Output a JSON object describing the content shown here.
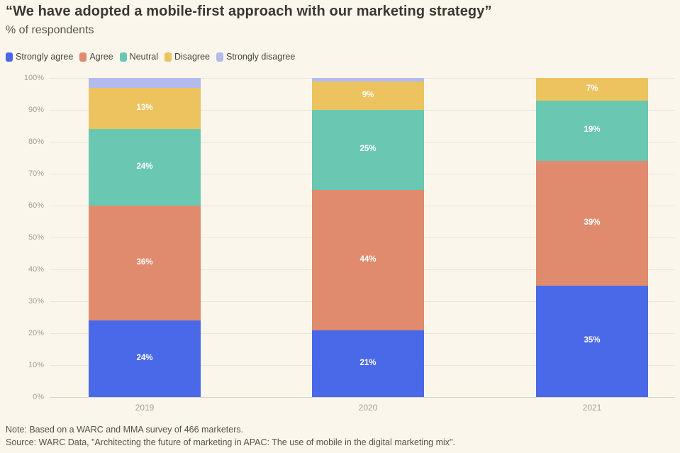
{
  "header": {
    "title": "“We have adopted a mobile-first approach with our marketing strategy”",
    "subtitle": "% of respondents"
  },
  "chart_data": {
    "type": "bar",
    "stacked": true,
    "categories": [
      "2019",
      "2020",
      "2021"
    ],
    "series": [
      {
        "name": "Strongly agree",
        "color": "#4a69e8",
        "values": [
          24,
          21,
          35
        ]
      },
      {
        "name": "Agree",
        "color": "#e08b6e",
        "values": [
          36,
          44,
          39
        ]
      },
      {
        "name": "Neutral",
        "color": "#6ac8b2",
        "values": [
          24,
          25,
          19
        ]
      },
      {
        "name": "Disagree",
        "color": "#ecc35e",
        "values": [
          13,
          9,
          7
        ]
      },
      {
        "name": "Strongly disagree",
        "color": "#b4baec",
        "values": [
          3,
          1,
          0
        ]
      }
    ],
    "title": "“We have adopted a mobile-first approach with our marketing strategy”",
    "subtitle": "% of respondents",
    "xlabel": "",
    "ylabel": "% of respondents",
    "ylim": [
      0,
      100
    ],
    "ytick_step": 10,
    "ytick_suffix": "%",
    "grid": true,
    "legend_position": "top",
    "bar_label_color": "#ffffff",
    "bar_label_min_value": 5,
    "background_color": "#faf6eb"
  },
  "footer": {
    "note": "Note: Based on a WARC and MMA survey of 466 marketers.",
    "source": "Source: WARC Data, \"Architecting the future of marketing in APAC: The use of mobile in the digital marketing mix\"."
  }
}
